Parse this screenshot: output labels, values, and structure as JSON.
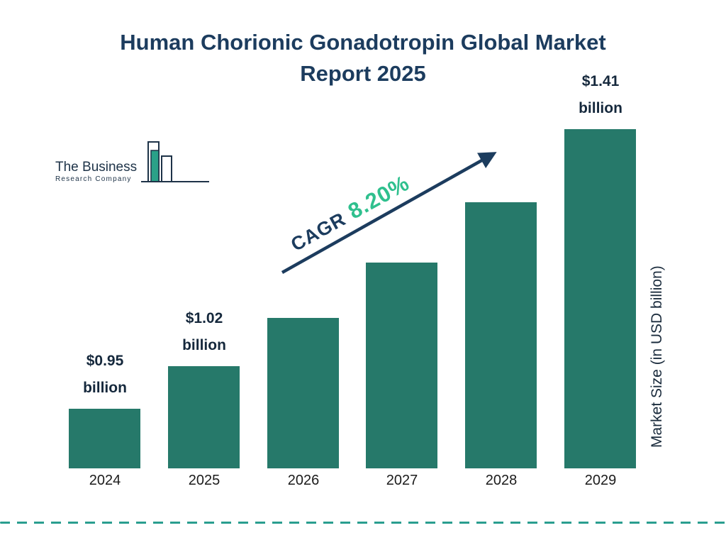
{
  "title": {
    "line1": "Human Chorionic Gonadotropin Global Market",
    "line2": "Report 2025"
  },
  "logo": {
    "name_line1": "The Business",
    "name_line2": "Research Company"
  },
  "annotation": {
    "cagr_label": "CAGR",
    "cagr_value": "8.20%"
  },
  "y_axis_label": "Market Size (in USD billion)",
  "colors": {
    "bar": "#26796a",
    "title": "#1c3c5e",
    "arrow": "#1c3c5e",
    "cagr_value": "#2fc08e",
    "dashed_line": "#2a9e8f"
  },
  "chart_data": {
    "type": "bar",
    "title": "Human Chorionic Gonadotropin Global Market Report 2025",
    "categories": [
      "2024",
      "2025",
      "2026",
      "2027",
      "2028",
      "2029"
    ],
    "values": [
      0.95,
      1.02,
      1.1,
      1.19,
      1.29,
      1.41
    ],
    "bar_labels": [
      "$0.95 billion",
      "$1.02 billion",
      "",
      "",
      "",
      "$1.41 billion"
    ],
    "xlabel": "",
    "ylabel": "Market Size (in USD billion)",
    "annotation": "CAGR 8.20%",
    "legend": false,
    "grid": false,
    "unit": "USD billion"
  }
}
